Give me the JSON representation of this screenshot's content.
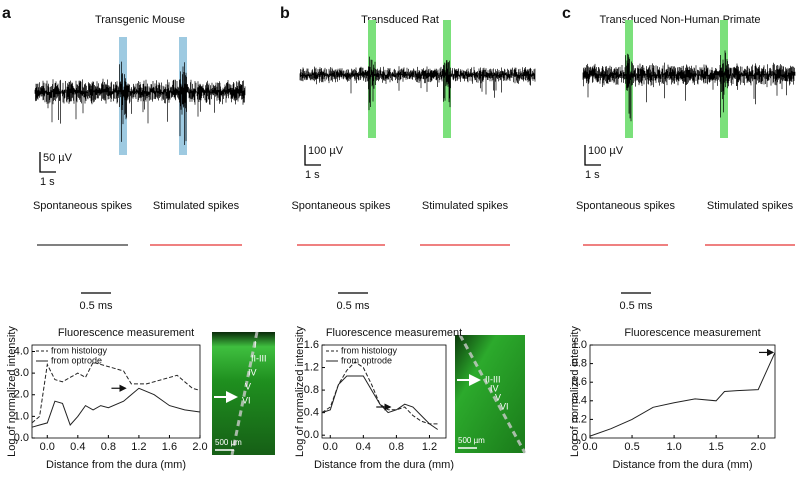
{
  "panels": [
    {
      "label": "a",
      "title": "Transgenic Mouse",
      "voltage_scale": "50 µV",
      "time_scale": "1 s",
      "spontaneous": "Spontaneous spikes",
      "stimulated": "Stimulated spikes",
      "waveform_scale": "0.5 ms",
      "image_layers": [
        "I",
        "II-III",
        "IV",
        "V",
        "VI"
      ],
      "image_scale": "500 µm"
    },
    {
      "label": "b",
      "title": "Transduced Rat",
      "voltage_scale": "100 µV",
      "time_scale": "1 s",
      "spontaneous": "Spontaneous spikes",
      "stimulated": "Stimulated spikes",
      "waveform_scale": "0.5 ms",
      "image_layers": [
        "II-III",
        "IV",
        "V",
        "VI"
      ],
      "image_scale": "500 µm"
    },
    {
      "label": "c",
      "title": "Transduced Non-Human Primate",
      "voltage_scale": "100 µV",
      "time_scale": "1 s",
      "spontaneous": "Spontaneous spikes",
      "stimulated": "Stimulated spikes",
      "waveform_scale": "0.5 ms"
    }
  ],
  "chart_data": [
    {
      "type": "line",
      "title": "Fluorescence measurement",
      "x_label": "Distance from the dura (mm)",
      "y_label": "Log of normalized intensity",
      "xlim": [
        -0.2,
        2.0
      ],
      "ylim": [
        0,
        4.3
      ],
      "xticks": [
        {
          "value": 0,
          "label": "0.0"
        },
        0.4,
        0.8,
        1.2,
        1.6,
        {
          "value": 2,
          "label": "2.0"
        }
      ],
      "yticks": [
        {
          "value": 0,
          "label": "0.0"
        },
        {
          "value": 1,
          "label": "1.0"
        },
        {
          "value": 2,
          "label": "2.0"
        },
        {
          "value": 3,
          "label": "3.0"
        },
        {
          "value": 4,
          "label": "4.0"
        }
      ],
      "legend": "upper left",
      "series": [
        {
          "name": "from histology",
          "color": "#222222",
          "style": "dashed",
          "x": [
            -0.2,
            -0.1,
            0.0,
            0.1,
            0.2,
            0.4,
            0.5,
            0.6,
            0.8,
            1.0,
            1.1,
            1.3,
            1.5,
            1.7,
            1.9,
            2.0
          ],
          "values": [
            0.7,
            1.0,
            3.4,
            2.7,
            2.6,
            3.0,
            2.8,
            3.5,
            3.3,
            3.1,
            2.5,
            2.5,
            2.7,
            2.9,
            2.3,
            2.2
          ]
        },
        {
          "name": "from optrode",
          "color": "#222222",
          "style": "solid",
          "x": [
            -0.2,
            -0.1,
            0.0,
            0.1,
            0.2,
            0.3,
            0.4,
            0.5,
            0.6,
            0.7,
            0.8,
            1.0,
            1.2,
            1.4,
            1.6,
            1.8,
            2.0
          ],
          "values": [
            0.5,
            0.6,
            0.7,
            1.7,
            1.6,
            0.6,
            1.0,
            1.5,
            1.3,
            1.5,
            1.4,
            1.7,
            2.3,
            2.0,
            1.5,
            1.3,
            1.2
          ]
        }
      ]
    },
    {
      "type": "line",
      "title": "Fluorescence measurement",
      "x_label": "Distance from the dura (mm)",
      "y_label": "Log of normalized intensity",
      "xlim": [
        -0.1,
        1.4
      ],
      "ylim": [
        -0.05,
        1.6
      ],
      "xticks": [
        {
          "value": 0,
          "label": "0.0"
        },
        0.4,
        0.8,
        1.2
      ],
      "yticks": [
        {
          "value": 0,
          "label": "0.0"
        },
        0.4,
        0.8,
        1.2,
        1.6
      ],
      "legend": "upper left",
      "series": [
        {
          "name": "from histology",
          "color": "#222222",
          "style": "dashed",
          "x": [
            -0.1,
            0.0,
            0.1,
            0.2,
            0.3,
            0.4,
            0.5,
            0.6,
            0.7,
            0.8,
            0.9,
            1.0,
            1.1,
            1.2,
            1.3
          ],
          "values": [
            0.4,
            0.5,
            0.9,
            1.15,
            1.3,
            1.2,
            0.9,
            0.55,
            0.45,
            0.45,
            0.5,
            0.35,
            0.25,
            0.2,
            0.2
          ]
        },
        {
          "name": "from optrode",
          "color": "#222222",
          "style": "solid",
          "x": [
            -0.1,
            0.0,
            0.1,
            0.2,
            0.3,
            0.4,
            0.5,
            0.6,
            0.7,
            0.8,
            0.9,
            1.0,
            1.1,
            1.2,
            1.3
          ],
          "values": [
            0.4,
            0.45,
            0.9,
            1.05,
            1.05,
            1.05,
            0.8,
            0.55,
            0.4,
            0.45,
            0.55,
            0.5,
            0.35,
            0.2,
            0.1
          ]
        }
      ]
    },
    {
      "type": "line",
      "title": "Fluorescence measurement",
      "x_label": "Distance from the dura (mm)",
      "y_label": "Log of normalized intensity",
      "xlim": [
        0,
        2.2
      ],
      "ylim": [
        0,
        1.0
      ],
      "xticks": [
        {
          "value": 0,
          "label": "0.0"
        },
        0.5,
        {
          "value": 1,
          "label": "1.0"
        },
        1.5,
        {
          "value": 2,
          "label": "2.0"
        }
      ],
      "yticks": [
        {
          "value": 0,
          "label": "0.0"
        },
        0.2,
        0.4,
        0.6,
        0.8,
        {
          "value": 1,
          "label": "1.0"
        }
      ],
      "series": [
        {
          "color": "#222222",
          "style": "solid",
          "x": [
            0,
            0.25,
            0.5,
            0.75,
            1.0,
            1.25,
            1.5,
            1.6,
            1.75,
            2.0,
            2.2
          ],
          "values": [
            0.02,
            0.1,
            0.2,
            0.33,
            0.38,
            0.42,
            0.4,
            0.5,
            0.51,
            0.52,
            0.92
          ]
        }
      ]
    }
  ]
}
